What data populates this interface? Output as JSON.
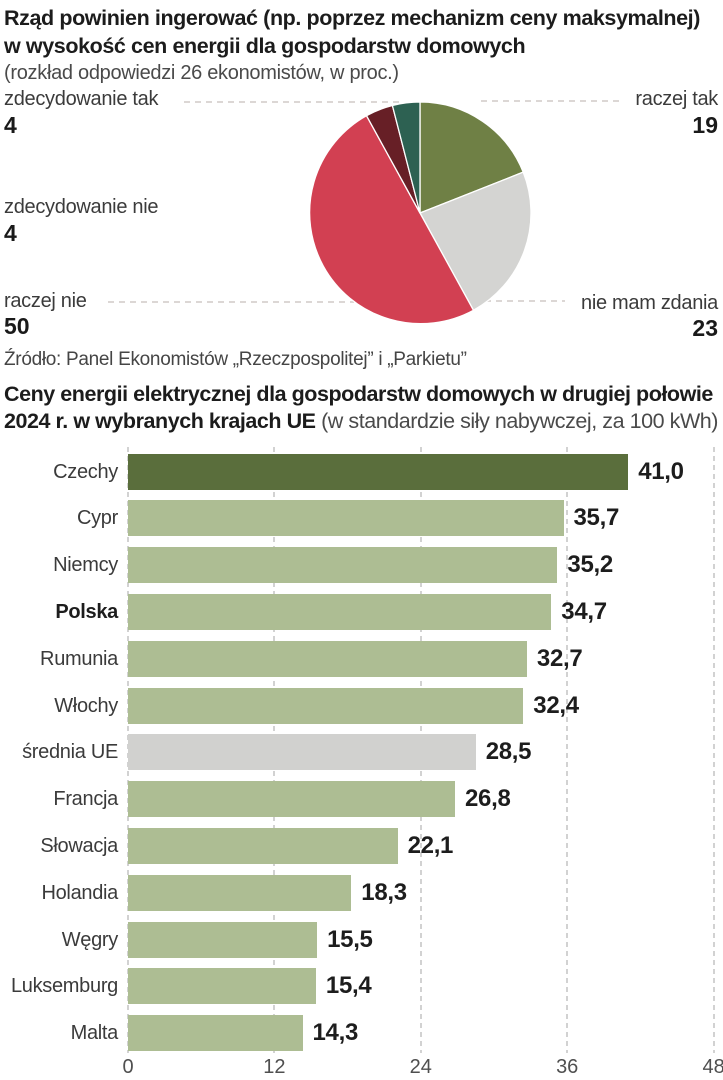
{
  "header": {
    "title_line1": "Rząd powinien ingerować (np. poprzez mechanizm ceny maksymalnej)",
    "title_line2": "w wysokość cen energii dla gospodarstw domowych",
    "subtitle": "(rozkład odpowiedzi 26 ekonomistów, w proc.)",
    "source": "Źródło: Panel Ekonomistów „Rzeczpospolitej” i „Parkietu”"
  },
  "bar_header": {
    "bold_line1": "Ceny energii elektrycznej dla gospodarstw domowych w drugiej połowie",
    "bold_line2": "2024 r. w wybranych krajach UE",
    "note": " (w standardzie siły nabywczej, za 100 kWh)"
  },
  "colors": {
    "pie_raczej_tak": "#6f8045",
    "pie_nie_mam_zdania": "#d4d4d2",
    "pie_raczej_nie": "#d24052",
    "pie_zdecydowanie_nie": "#671f26",
    "pie_zdecydowanie_tak": "#2d6152",
    "bar_highlight_dark": "#5a6e3c",
    "bar_default_green": "#adbd93",
    "bar_gray": "#d1d1cf",
    "grid": "#d2d2d2",
    "text_dark": "#1c1c1c",
    "text_gray": "#4a4a4a"
  },
  "chart_data": [
    {
      "type": "pie",
      "title": "Rząd powinien ingerować (np. poprzez mechanizm ceny maksymalnej) w wysokość cen energii dla gospodarstw domowych",
      "subtitle": "(rozkład odpowiedzi 26 ekonomistów, w proc.)",
      "unit": "proc.",
      "start_angle": "12-oclock",
      "direction": "clockwise",
      "slices": [
        {
          "label": "raczej tak",
          "value": 19,
          "color": "#6f8045"
        },
        {
          "label": "nie mam zdania",
          "value": 23,
          "color": "#d4d4d2"
        },
        {
          "label": "raczej nie",
          "value": 50,
          "color": "#d24052"
        },
        {
          "label": "zdecydowanie nie",
          "value": 4,
          "color": "#671f26"
        },
        {
          "label": "zdecydowanie tak",
          "value": 4,
          "color": "#2d6152"
        }
      ]
    },
    {
      "type": "bar",
      "orientation": "horizontal",
      "title": "Ceny energii elektrycznej dla gospodarstw domowych w drugiej połowie 2024 r. w wybranych krajach UE (w standardzie siły nabywczej, za 100 kWh)",
      "categories": [
        "Czechy",
        "Cypr",
        "Niemcy",
        "Polska",
        "Rumunia",
        "Włochy",
        "średnia UE",
        "Francja",
        "Słowacja",
        "Holandia",
        "Węgry",
        "Luksemburg",
        "Malta"
      ],
      "values": [
        41.0,
        35.7,
        35.2,
        34.7,
        32.7,
        32.4,
        28.5,
        26.8,
        22.1,
        18.3,
        15.5,
        15.4,
        14.3
      ],
      "value_labels": [
        "41,0",
        "35,7",
        "35,2",
        "34,7",
        "32,7",
        "32,4",
        "28,5",
        "26,8",
        "22,1",
        "18,3",
        "15,5",
        "15,4",
        "14,3"
      ],
      "bar_colors": [
        "#5a6e3c",
        "#adbd93",
        "#adbd93",
        "#adbd93",
        "#adbd93",
        "#adbd93",
        "#d1d1cf",
        "#adbd93",
        "#adbd93",
        "#adbd93",
        "#adbd93",
        "#adbd93",
        "#adbd93"
      ],
      "bold_categories": [
        "Polska"
      ],
      "xlabel": "",
      "ylabel": "",
      "xlim": [
        0,
        48
      ],
      "xticks": [
        0,
        12,
        24,
        36,
        48
      ],
      "xtick_labels": [
        "0",
        "12",
        "24",
        "36",
        "48"
      ],
      "grid": "dashed-vertical"
    }
  ]
}
